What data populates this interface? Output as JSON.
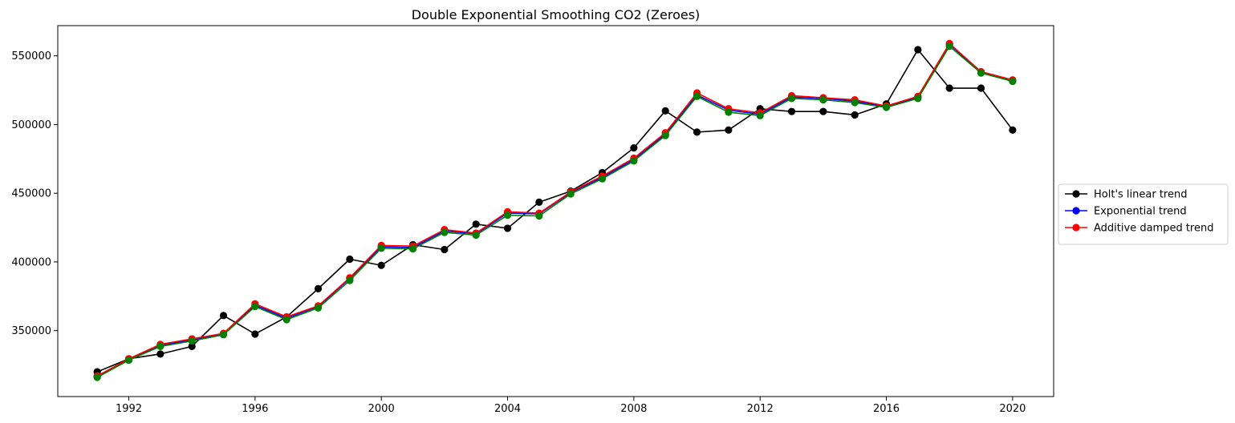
{
  "chart_data": {
    "type": "line",
    "title": "Double Exponential Smoothing CO2 (Zeroes)",
    "xlabel": "",
    "ylabel": "",
    "x": [
      1991,
      1992,
      1993,
      1994,
      1995,
      1996,
      1997,
      1998,
      1999,
      2000,
      2001,
      2002,
      2003,
      2004,
      2005,
      2006,
      2007,
      2008,
      2009,
      2010,
      2011,
      2012,
      2013,
      2014,
      2015,
      2016,
      2017,
      2018,
      2019,
      2020
    ],
    "xlim": [
      1989.75,
      2021.3
    ],
    "ylim": [
      302000,
      572000
    ],
    "xticks": [
      1992,
      1996,
      2000,
      2004,
      2008,
      2012,
      2016,
      2020
    ],
    "yticks": [
      350000,
      400000,
      450000,
      500000,
      550000
    ],
    "ytick_labels": [
      "350000",
      "400000",
      "450000",
      "500000",
      "550000"
    ],
    "grid": false,
    "legend_position": "right-outside-center",
    "series": [
      {
        "name": "Holt's linear trend",
        "color": "#000000",
        "values": [
          320000,
          329500,
          333000,
          338500,
          361000,
          347500,
          360000,
          380500,
          402000,
          397500,
          412500,
          409000,
          427500,
          424500,
          443500,
          451500,
          465000,
          483000,
          510000,
          494500,
          496000,
          511500,
          509500,
          509500,
          507000,
          515000,
          554500,
          526500,
          526500,
          496000
        ]
      },
      {
        "name": "Exponential trend",
        "color": "#0000ff",
        "values": [
          316500,
          329000,
          339500,
          343000,
          347500,
          368500,
          359000,
          367500,
          388000,
          411000,
          410500,
          422500,
          420500,
          435500,
          435000,
          450500,
          461500,
          474500,
          493000,
          521500,
          510500,
          507500,
          520000,
          519000,
          517000,
          513000,
          520000,
          558500,
          538000,
          532000
        ]
      },
      {
        "name": "Additive damped trend",
        "color": "#ff0000",
        "values": [
          317000,
          329500,
          340000,
          344000,
          348000,
          369500,
          360000,
          368000,
          388500,
          412000,
          411500,
          423500,
          421000,
          436500,
          435500,
          451000,
          462500,
          475500,
          494000,
          523000,
          511500,
          508500,
          521000,
          519500,
          518000,
          513500,
          520500,
          559000,
          538500,
          532500
        ]
      },
      {
        "name": "",
        "color": "#008000",
        "values": [
          316000,
          328500,
          338500,
          342500,
          347000,
          367500,
          358000,
          366500,
          386500,
          410000,
          409500,
          421500,
          419500,
          434000,
          433500,
          449500,
          460500,
          473500,
          492000,
          520500,
          509000,
          506500,
          519000,
          518000,
          516000,
          512500,
          519000,
          557000,
          537500,
          531500
        ]
      }
    ]
  }
}
